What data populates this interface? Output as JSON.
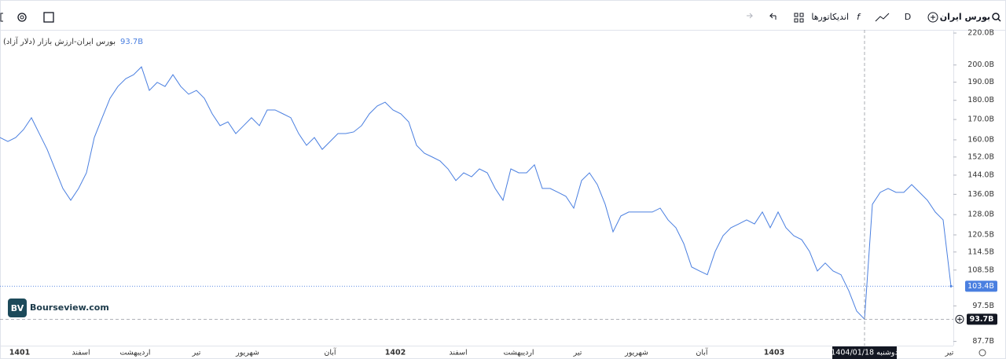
{
  "toolbar": {
    "symbol": "بورس ایران",
    "interval": "D",
    "indicators": "اندیکاتورها"
  },
  "chart_data": {
    "type": "line",
    "title": "بورس ایران-ارزش بازار (دلار آزاد)",
    "series": [
      {
        "name": "بورس ایران-ارزش بازار (دلار آزاد)",
        "color": "#4a7fe0",
        "values": [
          161.1,
          159.2,
          161.1,
          165.0,
          170.9,
          163.0,
          155.5,
          146.7,
          138.4,
          133.6,
          138.4,
          145.0,
          161.1,
          170.9,
          181.1,
          187.6,
          192.0,
          194.3,
          198.9,
          185.4,
          189.9,
          187.6,
          194.3,
          187.6,
          183.3,
          185.4,
          181.1,
          172.9,
          166.9,
          168.8,
          163.0,
          166.9,
          170.9,
          166.9,
          174.9,
          174.9,
          172.9,
          170.9,
          163.0,
          157.4,
          161.1,
          155.5,
          159.2,
          163.0,
          163.0,
          163.8,
          166.9,
          172.9,
          177.0,
          179.0,
          174.9,
          172.9,
          168.8,
          157.4,
          153.7,
          152.0,
          150.2,
          146.7,
          141.7,
          145.0,
          143.3,
          146.7,
          145.0,
          138.4,
          133.6,
          146.7,
          145.0,
          145.0,
          148.5,
          138.4,
          138.4,
          136.8,
          135.2,
          130.5,
          141.7,
          145.0,
          140.0,
          132.0,
          121.6,
          127.5,
          129.0,
          129.0,
          129.0,
          129.0,
          130.5,
          126.0,
          123.1,
          117.4,
          109.5,
          108.2,
          107.0,
          114.7,
          120.2,
          123.1,
          124.5,
          126.0,
          124.5,
          129.0,
          123.1,
          129.0,
          123.1,
          120.2,
          118.8,
          114.7,
          108.2,
          110.8,
          108.2,
          107.0,
          102.0,
          96.0,
          93.7,
          132.0,
          136.8,
          138.4,
          136.8,
          136.8,
          140.0,
          136.8,
          133.6,
          129.0,
          126.0,
          103.4
        ]
      }
    ],
    "legend_value": "93.7B",
    "price_label": "103.4B",
    "crosshair": {
      "index": 110,
      "value_label": "93.7B",
      "date_label": "1404/01/18 دوشنبه"
    },
    "log_scale": true,
    "grid": false,
    "ylim": [
      86.6,
      222.1
    ],
    "yticks": [
      {
        "value": 220,
        "label": "220.0B"
      },
      {
        "value": 200,
        "label": "200.0B"
      },
      {
        "value": 190,
        "label": "190.0B"
      },
      {
        "value": 180,
        "label": "180.0B"
      },
      {
        "value": 170,
        "label": "170.0B"
      },
      {
        "value": 160,
        "label": "160.0B"
      },
      {
        "value": 152,
        "label": "152.0B"
      },
      {
        "value": 144,
        "label": "144.0B"
      },
      {
        "value": 136,
        "label": "136.0B"
      },
      {
        "value": 128,
        "label": "128.0B"
      },
      {
        "value": 120.5,
        "label": "120.5B"
      },
      {
        "value": 114.5,
        "label": "114.5B"
      },
      {
        "value": 108.5,
        "label": "108.5B"
      },
      {
        "value": 97.5,
        "label": "97.5B"
      },
      {
        "value": 87.7,
        "label": "87.7B"
      }
    ],
    "xticks": [
      {
        "value": 2.5,
        "label": "1401"
      },
      {
        "value": 10.3,
        "label": "اسفند"
      },
      {
        "value": 17.2,
        "label": "اردیبهشت"
      },
      {
        "value": 25,
        "label": "تیر"
      },
      {
        "value": 31.5,
        "label": "شهریور"
      },
      {
        "value": 42,
        "label": "آبان"
      },
      {
        "value": 50.3,
        "label": "1402"
      },
      {
        "value": 58.3,
        "label": "اسفند"
      },
      {
        "value": 66,
        "label": "اردیبهشت"
      },
      {
        "value": 73.5,
        "label": "تیر"
      },
      {
        "value": 81,
        "label": "شهریور"
      },
      {
        "value": 89.3,
        "label": "آبان"
      },
      {
        "value": 98.5,
        "label": "1403"
      },
      {
        "value": 120.8,
        "label": "تیر"
      }
    ],
    "watermark": "Bourseview.com",
    "logo": "BV"
  }
}
